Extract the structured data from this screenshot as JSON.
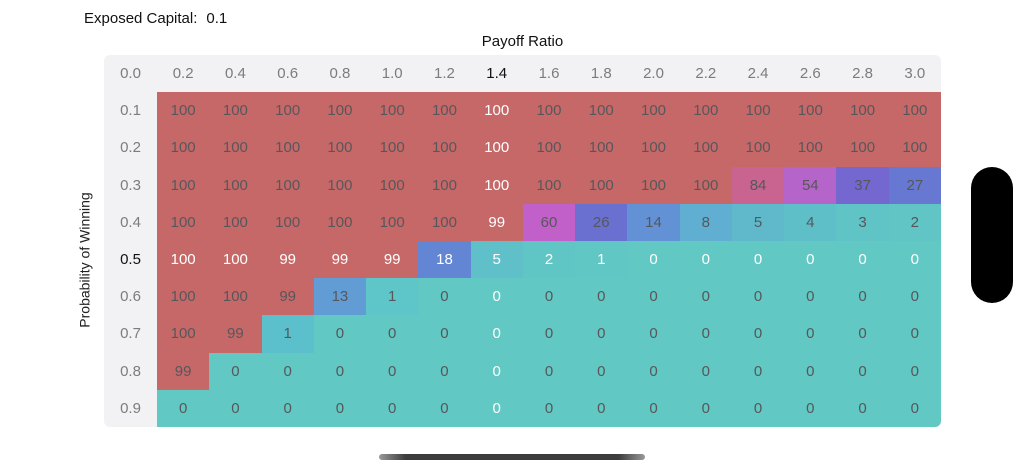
{
  "header": {
    "exposed_capital_label": "Exposed Capital:",
    "exposed_capital_value": "0.1"
  },
  "table": {
    "x_axis_title": "Payoff Ratio",
    "y_axis_title": "Probability of Winning",
    "column_headers": [
      "0.0",
      "0.2",
      "0.4",
      "0.6",
      "0.8",
      "1.0",
      "1.2",
      "1.4",
      "1.6",
      "1.8",
      "2.0",
      "2.2",
      "2.4",
      "2.6",
      "2.8",
      "3.0"
    ],
    "selected_column": "1.4",
    "selected_row": "0.5",
    "rows": [
      {
        "label": "0.1",
        "values": [
          100,
          100,
          100,
          100,
          100,
          100,
          100,
          100,
          100,
          100,
          100,
          100,
          100,
          100,
          100
        ],
        "colors": [
          "#c66868",
          "#c66868",
          "#c66868",
          "#c66868",
          "#c66868",
          "#c66868",
          "#c66868",
          "#c66868",
          "#c66868",
          "#c66868",
          "#c66868",
          "#c66868",
          "#c66868",
          "#c66868",
          "#c66868"
        ]
      },
      {
        "label": "0.2",
        "values": [
          100,
          100,
          100,
          100,
          100,
          100,
          100,
          100,
          100,
          100,
          100,
          100,
          100,
          100,
          100
        ],
        "colors": [
          "#c66868",
          "#c66868",
          "#c66868",
          "#c66868",
          "#c66868",
          "#c66868",
          "#c66868",
          "#c66868",
          "#c66868",
          "#c66868",
          "#c66868",
          "#c66868",
          "#c66868",
          "#c66868",
          "#c66868"
        ]
      },
      {
        "label": "0.3",
        "values": [
          100,
          100,
          100,
          100,
          100,
          100,
          100,
          100,
          100,
          100,
          100,
          84,
          54,
          37,
          27
        ],
        "colors": [
          "#c66868",
          "#c66868",
          "#c66868",
          "#c66868",
          "#c66868",
          "#c66868",
          "#c66868",
          "#c66868",
          "#c66868",
          "#c66868",
          "#c66868",
          "#c9638f",
          "#b565c9",
          "#7467cf",
          "#6678d2"
        ]
      },
      {
        "label": "0.4",
        "values": [
          100,
          100,
          100,
          100,
          100,
          100,
          99,
          60,
          26,
          14,
          8,
          5,
          4,
          3,
          2
        ],
        "colors": [
          "#c66868",
          "#c66868",
          "#c66868",
          "#c66868",
          "#c66868",
          "#c66868",
          "#c66868",
          "#c160c9",
          "#6a70d0",
          "#6292d5",
          "#60aed1",
          "#5fb9cb",
          "#5fbfc8",
          "#60c3c6",
          "#60c5c4"
        ]
      },
      {
        "label": "0.5",
        "values": [
          100,
          100,
          99,
          99,
          99,
          18,
          5,
          2,
          1,
          0,
          0,
          0,
          0,
          0,
          0
        ],
        "colors": [
          "#c66868",
          "#c66868",
          "#c66868",
          "#c66868",
          "#c66868",
          "#6286d4",
          "#5fc0c9",
          "#60c5c5",
          "#61c7c4",
          "#61c8c3",
          "#61c8c3",
          "#61c8c3",
          "#61c8c3",
          "#61c8c3",
          "#61c8c3"
        ]
      },
      {
        "label": "0.6",
        "values": [
          100,
          100,
          99,
          13,
          1,
          0,
          0,
          0,
          0,
          0,
          0,
          0,
          0,
          0,
          0
        ],
        "colors": [
          "#c66868",
          "#c66868",
          "#c66868",
          "#619cd4",
          "#5ec5c8",
          "#61c8c3",
          "#61c8c3",
          "#61c8c3",
          "#61c8c3",
          "#61c8c3",
          "#61c8c3",
          "#61c8c3",
          "#61c8c3",
          "#61c8c3",
          "#61c8c3"
        ]
      },
      {
        "label": "0.7",
        "values": [
          100,
          99,
          1,
          0,
          0,
          0,
          0,
          0,
          0,
          0,
          0,
          0,
          0,
          0,
          0
        ],
        "colors": [
          "#c66868",
          "#c66868",
          "#5bc0cb",
          "#61c8c3",
          "#61c8c3",
          "#61c8c3",
          "#61c8c3",
          "#61c8c3",
          "#61c8c3",
          "#61c8c3",
          "#61c8c3",
          "#61c8c3",
          "#61c8c3",
          "#61c8c3",
          "#61c8c3"
        ]
      },
      {
        "label": "0.8",
        "values": [
          99,
          0,
          0,
          0,
          0,
          0,
          0,
          0,
          0,
          0,
          0,
          0,
          0,
          0,
          0
        ],
        "colors": [
          "#c66868",
          "#61c8c3",
          "#61c8c3",
          "#61c8c3",
          "#61c8c3",
          "#61c8c3",
          "#61c8c3",
          "#61c8c3",
          "#61c8c3",
          "#61c8c3",
          "#61c8c3",
          "#61c8c3",
          "#61c8c3",
          "#61c8c3",
          "#61c8c3"
        ]
      },
      {
        "label": "0.9",
        "values": [
          0,
          0,
          0,
          0,
          0,
          0,
          0,
          0,
          0,
          0,
          0,
          0,
          0,
          0,
          0
        ],
        "colors": [
          "#61c8c3",
          "#61c8c3",
          "#61c8c3",
          "#61c8c3",
          "#61c8c3",
          "#61c8c3",
          "#61c8c3",
          "#61c8c3",
          "#61c8c3",
          "#61c8c3",
          "#61c8c3",
          "#61c8c3",
          "#61c8c3",
          "#61c8c3",
          "#61c8c3"
        ]
      }
    ]
  },
  "colors": {
    "high": "#c66868",
    "low": "#61c8c3",
    "header_bg": "#f2f2f5",
    "header_text": "#7b7b80",
    "selected_text": "#111111",
    "cell_text": "#57575b",
    "highlight_text": "#ffffff"
  },
  "chart_data": {
    "type": "heatmap",
    "title": "Exposed Capital: 0.1",
    "xlabel": "Payoff Ratio",
    "ylabel": "Probability of Winning",
    "x": [
      0.2,
      0.4,
      0.6,
      0.8,
      1.0,
      1.2,
      1.4,
      1.6,
      1.8,
      2.0,
      2.2,
      2.4,
      2.6,
      2.8,
      3.0
    ],
    "y": [
      0.1,
      0.2,
      0.3,
      0.4,
      0.5,
      0.6,
      0.7,
      0.8,
      0.9
    ],
    "selected_x": 1.4,
    "selected_y": 0.5,
    "values": [
      [
        100,
        100,
        100,
        100,
        100,
        100,
        100,
        100,
        100,
        100,
        100,
        100,
        100,
        100,
        100
      ],
      [
        100,
        100,
        100,
        100,
        100,
        100,
        100,
        100,
        100,
        100,
        100,
        100,
        100,
        100,
        100
      ],
      [
        100,
        100,
        100,
        100,
        100,
        100,
        100,
        100,
        100,
        100,
        100,
        84,
        54,
        37,
        27
      ],
      [
        100,
        100,
        100,
        100,
        100,
        100,
        99,
        60,
        26,
        14,
        8,
        5,
        4,
        3,
        2
      ],
      [
        100,
        100,
        99,
        99,
        99,
        18,
        5,
        2,
        1,
        0,
        0,
        0,
        0,
        0,
        0
      ],
      [
        100,
        100,
        99,
        13,
        1,
        0,
        0,
        0,
        0,
        0,
        0,
        0,
        0,
        0,
        0
      ],
      [
        100,
        99,
        1,
        0,
        0,
        0,
        0,
        0,
        0,
        0,
        0,
        0,
        0,
        0,
        0
      ],
      [
        99,
        0,
        0,
        0,
        0,
        0,
        0,
        0,
        0,
        0,
        0,
        0,
        0,
        0,
        0
      ],
      [
        0,
        0,
        0,
        0,
        0,
        0,
        0,
        0,
        0,
        0,
        0,
        0,
        0,
        0,
        0
      ]
    ],
    "legend": "none",
    "colormap": "red(high) to teal(low) through magenta/purple/blue"
  }
}
